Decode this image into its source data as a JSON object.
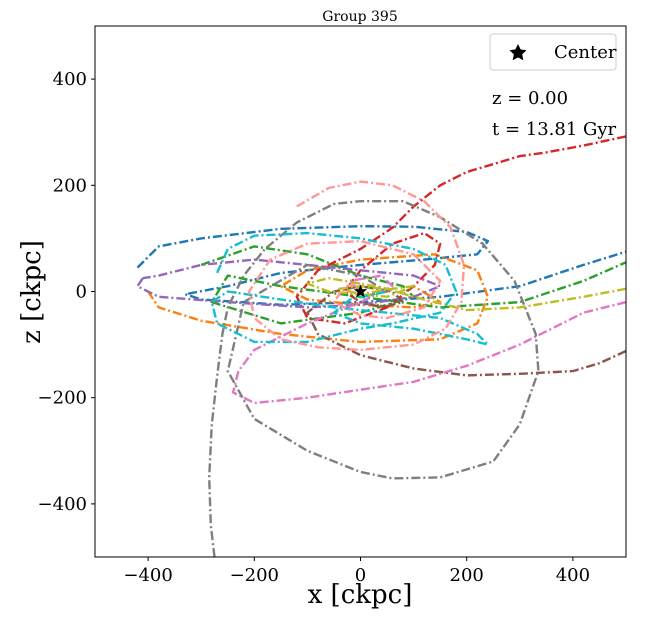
{
  "chart_data": {
    "type": "line",
    "title": "Group 395",
    "xlabel": "x [ckpc]",
    "ylabel": "z [ckpc]",
    "xlim": [
      -500,
      500
    ],
    "ylim": [
      -500,
      500
    ],
    "xticks": [
      -400,
      -200,
      0,
      200,
      400
    ],
    "yticks": [
      -400,
      -200,
      0,
      200,
      400
    ],
    "xtick_labels": [
      "−400",
      "−200",
      "0",
      "200",
      "400"
    ],
    "ytick_labels": [
      "−400",
      "−200",
      "0",
      "200",
      "400"
    ],
    "grid": false,
    "legend": {
      "position": "top-right",
      "entries": [
        {
          "label": "Center",
          "marker": "star"
        }
      ]
    },
    "annotations": [
      "z = 0.00",
      "t = 13.81 Gyr"
    ],
    "center": {
      "x": 0,
      "z": 0
    },
    "series": [
      {
        "name": "track-blue",
        "color": "#1f77b4",
        "points": [
          [
            -420,
            45
          ],
          [
            -380,
            85
          ],
          [
            -300,
            100
          ],
          [
            -150,
            118
          ],
          [
            0,
            123
          ],
          [
            100,
            122
          ],
          [
            200,
            112
          ],
          [
            240,
            95
          ],
          [
            220,
            70
          ],
          [
            120,
            60
          ],
          [
            0,
            50
          ],
          [
            -150,
            35
          ],
          [
            -250,
            10
          ],
          [
            -330,
            -5
          ],
          [
            -300,
            -15
          ],
          [
            -150,
            -25
          ],
          [
            0,
            -20
          ],
          [
            150,
            -10
          ],
          [
            300,
            10
          ],
          [
            420,
            50
          ],
          [
            500,
            75
          ]
        ]
      },
      {
        "name": "track-orange",
        "color": "#ff7f0e",
        "points": [
          [
            -400,
            0
          ],
          [
            -380,
            -30
          ],
          [
            -300,
            -55
          ],
          [
            -150,
            -80
          ],
          [
            0,
            -95
          ],
          [
            150,
            -90
          ],
          [
            220,
            -60
          ],
          [
            240,
            -10
          ],
          [
            220,
            40
          ],
          [
            140,
            70
          ],
          [
            0,
            60
          ],
          [
            -100,
            40
          ],
          [
            -150,
            10
          ],
          [
            -100,
            -15
          ],
          [
            0,
            -25
          ],
          [
            100,
            -30
          ],
          [
            150,
            -20
          ],
          [
            100,
            10
          ]
        ]
      },
      {
        "name": "track-green",
        "color": "#2ca02c",
        "points": [
          [
            -300,
            50
          ],
          [
            -200,
            85
          ],
          [
            -100,
            70
          ],
          [
            0,
            30
          ],
          [
            80,
            10
          ],
          [
            100,
            -10
          ],
          [
            0,
            -40
          ],
          [
            -150,
            -60
          ],
          [
            -280,
            -20
          ],
          [
            -250,
            30
          ],
          [
            -150,
            10
          ],
          [
            0,
            -10
          ],
          [
            150,
            -30
          ],
          [
            300,
            -20
          ],
          [
            420,
            20
          ],
          [
            500,
            55
          ]
        ]
      },
      {
        "name": "track-red",
        "color": "#d62728",
        "points": [
          [
            500,
            292
          ],
          [
            420,
            275
          ],
          [
            350,
            262
          ],
          [
            300,
            255
          ],
          [
            250,
            240
          ],
          [
            200,
            225
          ],
          [
            150,
            200
          ],
          [
            100,
            160
          ],
          [
            60,
            120
          ],
          [
            0,
            80
          ],
          [
            -80,
            40
          ],
          [
            -120,
            -10
          ],
          [
            -100,
            -50
          ],
          [
            -30,
            -60
          ],
          [
            50,
            -30
          ],
          [
            100,
            10
          ],
          [
            140,
            50
          ],
          [
            150,
            90
          ],
          [
            120,
            110
          ],
          [
            60,
            90
          ],
          [
            0,
            40
          ],
          [
            -30,
            0
          ],
          [
            0,
            -20
          ],
          [
            50,
            -30
          ]
        ]
      },
      {
        "name": "track-purple",
        "color": "#9467bd",
        "points": [
          [
            -410,
            25
          ],
          [
            -420,
            10
          ],
          [
            -380,
            -10
          ],
          [
            -250,
            -20
          ],
          [
            -100,
            -30
          ],
          [
            0,
            -25
          ],
          [
            100,
            -10
          ],
          [
            150,
            10
          ],
          [
            100,
            30
          ],
          [
            0,
            40
          ],
          [
            -100,
            50
          ],
          [
            -200,
            60
          ],
          [
            -300,
            50
          ],
          [
            -380,
            30
          ],
          [
            -410,
            25
          ]
        ]
      },
      {
        "name": "track-brown",
        "color": "#8c564b",
        "points": [
          [
            500,
            -112
          ],
          [
            450,
            -135
          ],
          [
            400,
            -150
          ],
          [
            300,
            -155
          ],
          [
            200,
            -158
          ],
          [
            100,
            -145
          ],
          [
            0,
            -120
          ],
          [
            -80,
            -80
          ],
          [
            -100,
            -40
          ],
          [
            -50,
            0
          ],
          [
            0,
            10
          ],
          [
            60,
            0
          ],
          [
            80,
            -20
          ],
          [
            40,
            -30
          ],
          [
            0,
            -20
          ]
        ]
      },
      {
        "name": "track-pink",
        "color": "#e377c2",
        "points": [
          [
            500,
            -20
          ],
          [
            420,
            -40
          ],
          [
            300,
            -100
          ],
          [
            200,
            -140
          ],
          [
            100,
            -170
          ],
          [
            0,
            -185
          ],
          [
            -100,
            -200
          ],
          [
            -200,
            -210
          ],
          [
            -240,
            -190
          ],
          [
            -230,
            -150
          ],
          [
            -200,
            -110
          ],
          [
            -100,
            -60
          ],
          [
            0,
            -20
          ],
          [
            60,
            10
          ],
          [
            40,
            30
          ],
          [
            -20,
            20
          ],
          [
            0,
            0
          ]
        ]
      },
      {
        "name": "track-gray",
        "color": "#7f7f7f",
        "points": [
          [
            -275,
            -500
          ],
          [
            -282,
            -440
          ],
          [
            -285,
            -350
          ],
          [
            -280,
            -250
          ],
          [
            -270,
            -160
          ],
          [
            -260,
            -80
          ],
          [
            -250,
            -30
          ],
          [
            -220,
            30
          ],
          [
            -180,
            80
          ],
          [
            -120,
            130
          ],
          [
            -50,
            165
          ],
          [
            0,
            170
          ],
          [
            80,
            170
          ],
          [
            150,
            140
          ],
          [
            230,
            90
          ],
          [
            290,
            20
          ],
          [
            330,
            -80
          ],
          [
            335,
            -150
          ],
          [
            300,
            -250
          ],
          [
            250,
            -320
          ],
          [
            150,
            -350
          ],
          [
            60,
            -352
          ],
          [
            0,
            -340
          ],
          [
            -100,
            -300
          ],
          [
            -200,
            -240
          ],
          [
            -250,
            -150
          ],
          [
            -220,
            -20
          ],
          [
            -100,
            50
          ],
          [
            0,
            30
          ],
          [
            50,
            0
          ],
          [
            0,
            -10
          ]
        ]
      },
      {
        "name": "track-olive",
        "color": "#bcbd22",
        "points": [
          [
            500,
            5
          ],
          [
            420,
            -10
          ],
          [
            300,
            -30
          ],
          [
            200,
            -35
          ],
          [
            100,
            -10
          ],
          [
            50,
            5
          ],
          [
            0,
            15
          ],
          [
            -60,
            25
          ],
          [
            -100,
            15
          ],
          [
            -60,
            0
          ],
          [
            0,
            -5
          ],
          [
            60,
            5
          ],
          [
            100,
            10
          ],
          [
            50,
            -10
          ],
          [
            0,
            -5
          ],
          [
            -40,
            5
          ],
          [
            0,
            10
          ],
          [
            40,
            5
          ]
        ]
      },
      {
        "name": "track-cyan",
        "color": "#17becf",
        "points": [
          [
            -270,
            35
          ],
          [
            -250,
            80
          ],
          [
            -200,
            105
          ],
          [
            -100,
            110
          ],
          [
            0,
            100
          ],
          [
            100,
            80
          ],
          [
            160,
            50
          ],
          [
            180,
            0
          ],
          [
            150,
            -40
          ],
          [
            60,
            -60
          ],
          [
            0,
            -70
          ],
          [
            -100,
            -95
          ],
          [
            -200,
            -95
          ],
          [
            -270,
            -60
          ],
          [
            -280,
            -20
          ],
          [
            -250,
            0
          ],
          [
            -150,
            -15
          ],
          [
            -50,
            -30
          ],
          [
            50,
            -40
          ],
          [
            150,
            -50
          ],
          [
            220,
            -80
          ],
          [
            240,
            -100
          ],
          [
            200,
            -90
          ],
          [
            100,
            -70
          ],
          [
            0,
            -60
          ],
          [
            -50,
            -40
          ],
          [
            -20,
            -15
          ],
          [
            50,
            0
          ]
        ]
      },
      {
        "name": "track-salmon",
        "color": "#ff9896",
        "points": [
          [
            -120,
            160
          ],
          [
            -60,
            195
          ],
          [
            0,
            207
          ],
          [
            60,
            200
          ],
          [
            120,
            170
          ],
          [
            170,
            120
          ],
          [
            195,
            50
          ],
          [
            190,
            -20
          ],
          [
            160,
            -70
          ],
          [
            100,
            -100
          ],
          [
            0,
            -110
          ],
          [
            -80,
            -105
          ],
          [
            -150,
            -90
          ],
          [
            -200,
            -50
          ],
          [
            -210,
            0
          ],
          [
            -170,
            60
          ],
          [
            -100,
            90
          ],
          [
            0,
            95
          ],
          [
            100,
            70
          ],
          [
            150,
            20
          ],
          [
            120,
            -30
          ],
          [
            50,
            -50
          ],
          [
            0,
            -45
          ],
          [
            -50,
            -20
          ],
          [
            -30,
            10
          ],
          [
            0,
            15
          ]
        ]
      }
    ]
  }
}
